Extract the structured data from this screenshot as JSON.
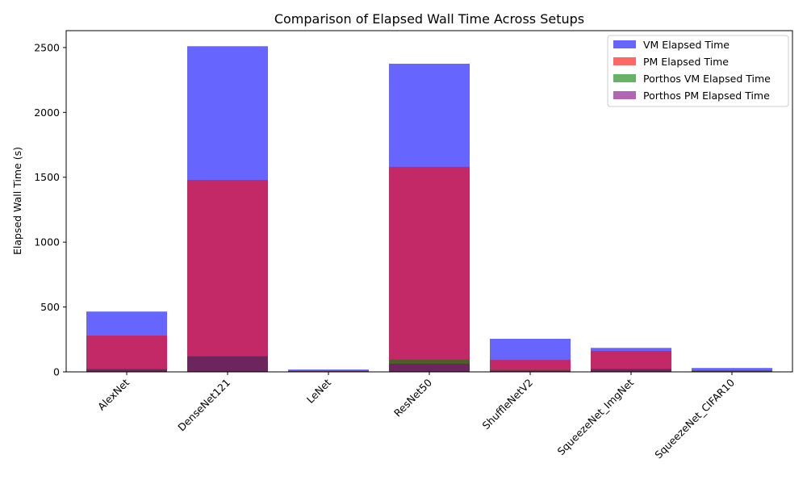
{
  "chart_data": {
    "type": "bar",
    "title": "Comparison of Elapsed Wall Time Across Setups",
    "xlabel": "",
    "ylabel": "Elapsed Wall Time (s)",
    "ylim": [
      0,
      2630
    ],
    "yticks": [
      0,
      500,
      1000,
      1500,
      2000,
      2500
    ],
    "categories": [
      "AlexNet",
      "DenseNet121",
      "LeNet",
      "ResNet50",
      "ShuffleNetV2",
      "SqueezeNet_ImgNet",
      "SqueezeNet_CIFAR10"
    ],
    "grid": false,
    "legend_position": "top-right",
    "bar_mode": "overlapping",
    "series": [
      {
        "name": "VM Elapsed Time",
        "color": "#0000ff",
        "opacity": 0.6,
        "values": [
          465,
          2510,
          18,
          2375,
          255,
          185,
          30
        ]
      },
      {
        "name": "PM Elapsed Time",
        "color": "#ff0000",
        "opacity": 0.6,
        "values": [
          280,
          1480,
          10,
          1580,
          92,
          162,
          12
        ]
      },
      {
        "name": "Porthos VM Elapsed Time",
        "color": "#008000",
        "opacity": 0.6,
        "values": [
          25,
          120,
          5,
          95,
          15,
          25,
          6
        ]
      },
      {
        "name": "Porthos PM Elapsed Time",
        "color": "#800080",
        "opacity": 0.6,
        "values": [
          18,
          120,
          3,
          62,
          10,
          20,
          4
        ]
      }
    ]
  }
}
